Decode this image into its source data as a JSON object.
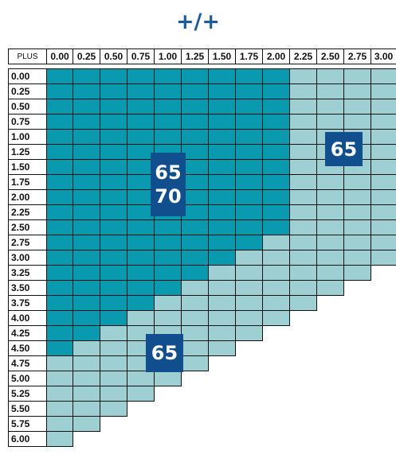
{
  "title": "+/+",
  "corner_label": "PLUS",
  "column_headers": [
    "0.00",
    "0.25",
    "0.50",
    "0.75",
    "1.00",
    "1.25",
    "1.50",
    "1.75",
    "2.00",
    "2.25",
    "2.50",
    "2.75",
    "3.00"
  ],
  "row_headers": [
    "0.00",
    "0.25",
    "0.50",
    "0.75",
    "1.00",
    "1.25",
    "1.50",
    "1.75",
    "2.00",
    "2.25",
    "2.50",
    "2.75",
    "3.00",
    "3.25",
    "3.50",
    "3.75",
    "4.00",
    "4.25",
    "4.50",
    "4.75",
    "5.00",
    "5.25",
    "5.50",
    "5.75",
    "6.00"
  ],
  "colors": {
    "teal": "#0a9aaf",
    "light": "#9ed0d3",
    "badge": "#114e8e",
    "title": "#1a5aa0",
    "grid_line": "#111111"
  },
  "regions": {
    "teal_last_col_by_row": [
      8,
      8,
      8,
      8,
      8,
      8,
      8,
      8,
      8,
      8,
      8,
      7,
      6,
      5,
      4,
      3,
      2,
      1,
      0,
      -1,
      -1,
      -1,
      -1,
      -1,
      -1
    ],
    "filled_last_col_by_row": [
      12,
      12,
      12,
      12,
      12,
      12,
      12,
      12,
      12,
      12,
      12,
      12,
      12,
      11,
      10,
      9,
      8,
      7,
      6,
      5,
      4,
      3,
      2,
      1,
      0
    ]
  },
  "badges": {
    "right": {
      "lines": [
        "65"
      ]
    },
    "center": {
      "lines": [
        "65",
        "70"
      ]
    },
    "lower": {
      "lines": [
        "65"
      ]
    }
  }
}
